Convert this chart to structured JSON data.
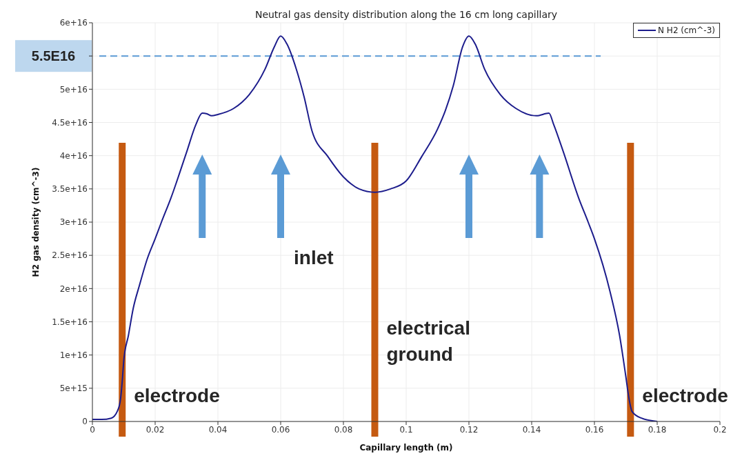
{
  "chart_data": {
    "type": "line",
    "title": "Neutral gas density distribution along the 16 cm long capillary",
    "xlabel": "Capillary length (m)",
    "ylabel": "H2 gas density (cm^-3)",
    "x": [
      0,
      0.003,
      0.006,
      0.008,
      0.009,
      0.0095,
      0.01,
      0.0115,
      0.013,
      0.015,
      0.0175,
      0.02,
      0.022,
      0.025,
      0.03,
      0.033,
      0.035,
      0.0365,
      0.038,
      0.04,
      0.045,
      0.05,
      0.055,
      0.058,
      0.06,
      0.062,
      0.065,
      0.0675,
      0.07,
      0.075,
      0.08,
      0.085,
      0.09,
      0.095,
      0.1,
      0.105,
      0.11,
      0.1125,
      0.115,
      0.118,
      0.12,
      0.122,
      0.125,
      0.13,
      0.135,
      0.1415,
      0.1455,
      0.147,
      0.15,
      0.155,
      0.158,
      0.16,
      0.165,
      0.168,
      0.17,
      0.171,
      0.172,
      0.175,
      0.18
    ],
    "series": [
      {
        "name": "N H2 (cm^-3)",
        "color": "#1c1c8c",
        "values": [
          300000000000000.0,
          300000000000000.0,
          500000000000000.0,
          1600000000000000.0,
          3500000000000000.0,
          6000000000000000.0,
          9200000000000000.0,
          1.3e+16,
          1.7e+16,
          2.05e+16,
          2.45e+16,
          2.75e+16,
          3e+16,
          3.36e+16,
          4.05e+16,
          4.47e+16,
          4.64e+16,
          4.63e+16,
          4.6e+16,
          4.62e+16,
          4.71e+16,
          4.92e+16,
          5.3e+16,
          5.64e+16,
          5.8e+16,
          5.68e+16,
          5.3e+16,
          4.88e+16,
          4.37e+16,
          3.99e+16,
          3.68e+16,
          3.5e+16,
          3.45e+16,
          3.5e+16,
          3.62e+16,
          3.99e+16,
          4.4e+16,
          4.68e+16,
          5.05e+16,
          5.64e+16,
          5.8e+16,
          5.68e+16,
          5.3e+16,
          4.92e+16,
          4.71e+16,
          4.6e+16,
          4.64e+16,
          4.47e+16,
          4.07e+16,
          3.36e+16,
          3e+16,
          2.75e+16,
          1.95e+16,
          1.3e+16,
          6800000000000000.0,
          3500000000000000.0,
          1500000000000000.0,
          500000000000000.0,
          0
        ]
      }
    ],
    "xlim": [
      0,
      0.2
    ],
    "xticks": [
      0,
      0.02,
      0.04,
      0.06,
      0.08,
      0.1,
      0.12,
      0.14,
      0.16,
      0.18,
      0.2
    ],
    "ylim": [
      0,
      6e+16
    ],
    "yticks": [
      0,
      {
        "value": 5000000000000000.0,
        "label": "5e+15"
      },
      {
        "value": 1e+16,
        "label": "1e+16"
      },
      {
        "value": 1.5e+16,
        "label": "1.5e+16"
      },
      {
        "value": 2e+16,
        "label": "2e+16"
      },
      {
        "value": 2.5e+16,
        "label": "2.5e+16"
      },
      {
        "value": 3e+16,
        "label": "3e+16"
      },
      {
        "value": 3.5e+16,
        "label": "3.5e+16"
      },
      {
        "value": 4e+16,
        "label": "4e+16"
      },
      {
        "value": 4.5e+16,
        "label": "4.5e+16"
      },
      {
        "value": 5e+16,
        "label": "5e+16"
      },
      {
        "value": 5.5e+16,
        "label": null
      },
      {
        "value": 6e+16,
        "label": "6e+16"
      }
    ],
    "ref_lines": [
      {
        "axis": "y",
        "value": 5.5e+16,
        "label": "5.5E16",
        "color": "#5b9bd5",
        "line_style": "dashed"
      },
      {
        "axis": "x",
        "value": 0.0095,
        "label": "electrode",
        "color": "#c55a11"
      },
      {
        "axis": "x",
        "value": 0.09,
        "label": "electrical ground",
        "color": "#c55a11"
      },
      {
        "axis": "x",
        "value": 0.1715,
        "label": "electrode",
        "color": "#c55a11"
      }
    ],
    "annotations": [
      "inlet"
    ],
    "grid": true,
    "legend": "top right",
    "marker": "none",
    "line_style": "solid"
  }
}
